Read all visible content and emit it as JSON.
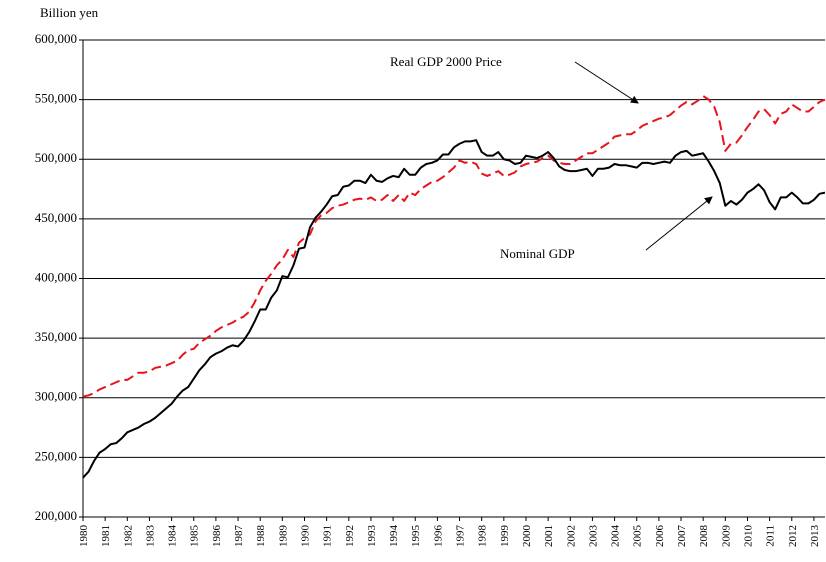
{
  "chart_data": {
    "type": "line",
    "y_axis_label": "Billion yen",
    "annotations": [
      "Real GDP 2000 Price",
      "Nominal GDP"
    ],
    "x": [
      1980,
      1980.25,
      1980.5,
      1980.75,
      1981,
      1981.25,
      1981.5,
      1981.75,
      1982,
      1982.25,
      1982.5,
      1982.75,
      1983,
      1983.25,
      1983.5,
      1983.75,
      1984,
      1984.25,
      1984.5,
      1984.75,
      1985,
      1985.25,
      1985.5,
      1985.75,
      1986,
      1986.25,
      1986.5,
      1986.75,
      1987,
      1987.25,
      1987.5,
      1987.75,
      1988,
      1988.25,
      1988.5,
      1988.75,
      1989,
      1989.25,
      1989.5,
      1989.75,
      1990,
      1990.25,
      1990.5,
      1990.75,
      1991,
      1991.25,
      1991.5,
      1991.75,
      1992,
      1992.25,
      1992.5,
      1992.75,
      1993,
      1993.25,
      1993.5,
      1993.75,
      1994,
      1994.25,
      1994.5,
      1994.75,
      1995,
      1995.25,
      1995.5,
      1995.75,
      1996,
      1996.25,
      1996.5,
      1996.75,
      1997,
      1997.25,
      1997.5,
      1997.75,
      1998,
      1998.25,
      1998.5,
      1998.75,
      1999,
      1999.25,
      1999.5,
      1999.75,
      2000,
      2000.25,
      2000.5,
      2000.75,
      2001,
      2001.25,
      2001.5,
      2001.75,
      2002,
      2002.25,
      2002.5,
      2002.75,
      2003,
      2003.25,
      2003.5,
      2003.75,
      2004,
      2004.25,
      2004.5,
      2004.75,
      2005,
      2005.25,
      2005.5,
      2005.75,
      2006,
      2006.25,
      2006.5,
      2006.75,
      2007,
      2007.25,
      2007.5,
      2007.75,
      2008,
      2008.25,
      2008.5,
      2008.75,
      2009,
      2009.25,
      2009.5,
      2009.75,
      2010,
      2010.25,
      2010.5,
      2010.75,
      2011,
      2011.25,
      2011.5,
      2011.75,
      2012,
      2012.25,
      2012.5,
      2012.75,
      2013,
      2013.25,
      2013.5
    ],
    "series": [
      {
        "name": "Real GDP 2000 Price",
        "color": "#e8141c",
        "dashed": true,
        "values": [
          301000,
          302000,
          304000,
          307000,
          309000,
          311000,
          313000,
          315000,
          315000,
          318000,
          321000,
          321000,
          322000,
          325000,
          326000,
          327000,
          329000,
          331000,
          336000,
          340000,
          341000,
          346000,
          349000,
          352000,
          356000,
          359000,
          361000,
          363000,
          366000,
          368000,
          372000,
          380000,
          390000,
          398000,
          404000,
          411000,
          416000,
          424000,
          418000,
          430000,
          434000,
          437000,
          448000,
          453000,
          455000,
          459000,
          461000,
          462000,
          464000,
          466000,
          467000,
          466000,
          468000,
          465000,
          466000,
          470000,
          465000,
          470000,
          465000,
          472000,
          470000,
          475000,
          478000,
          481000,
          482000,
          485000,
          489000,
          493000,
          499000,
          497000,
          498000,
          496000,
          488000,
          486000,
          488000,
          490000,
          486000,
          487000,
          489000,
          494000,
          496000,
          497000,
          498000,
          501000,
          503000,
          499000,
          497000,
          496000,
          496000,
          499000,
          502000,
          505000,
          505000,
          508000,
          511000,
          514000,
          519000,
          520000,
          521000,
          521000,
          524000,
          528000,
          530000,
          532000,
          534000,
          535000,
          537000,
          541000,
          545000,
          548000,
          546000,
          549000,
          553000,
          550000,
          544000,
          531000,
          507000,
          513000,
          514000,
          520000,
          527000,
          533000,
          540000,
          542000,
          537000,
          530000,
          538000,
          540000,
          546000,
          543000,
          540000,
          540000,
          544000,
          548000,
          550000
        ]
      },
      {
        "name": "Nominal GDP",
        "color": "#000000",
        "dashed": false,
        "values": [
          233000,
          238000,
          247000,
          254000,
          257000,
          261000,
          262000,
          266000,
          271000,
          273000,
          275000,
          278000,
          280000,
          283000,
          287000,
          291000,
          295000,
          301000,
          306000,
          309000,
          316000,
          323000,
          328000,
          334000,
          337000,
          339000,
          342000,
          344000,
          343000,
          348000,
          355000,
          364000,
          374000,
          374000,
          384000,
          390000,
          402000,
          401000,
          411000,
          425000,
          426000,
          443000,
          451000,
          456000,
          462000,
          469000,
          470000,
          477000,
          478000,
          482000,
          482000,
          480000,
          487000,
          482000,
          481000,
          484000,
          486000,
          485000,
          492000,
          487000,
          487000,
          493000,
          496000,
          497000,
          499000,
          504000,
          504000,
          510000,
          513000,
          515000,
          515000,
          516000,
          506000,
          503000,
          503000,
          506000,
          500000,
          499000,
          496000,
          497000,
          503000,
          502000,
          501000,
          503000,
          506000,
          501000,
          494000,
          491000,
          490000,
          490000,
          491000,
          492000,
          486000,
          492000,
          492000,
          493000,
          496000,
          495000,
          495000,
          494000,
          493000,
          497000,
          497000,
          496000,
          497000,
          498000,
          497000,
          503000,
          506000,
          507000,
          503000,
          504000,
          505000,
          498000,
          490000,
          480000,
          461000,
          465000,
          462000,
          466000,
          472000,
          475000,
          479000,
          474000,
          464000,
          458000,
          468000,
          468000,
          472000,
          468000,
          463000,
          463000,
          466000,
          471000,
          472000
        ]
      }
    ],
    "xlim": [
      1980,
      2013.5
    ],
    "xticks": [
      1980,
      1981,
      1982,
      1983,
      1984,
      1985,
      1986,
      1987,
      1988,
      1989,
      1990,
      1991,
      1992,
      1993,
      1994,
      1995,
      1996,
      1997,
      1998,
      1999,
      2000,
      2001,
      2002,
      2003,
      2004,
      2005,
      2006,
      2007,
      2008,
      2009,
      2010,
      2011,
      2012,
      2013
    ],
    "ylim": [
      200000,
      600000
    ],
    "yticks": [
      {
        "value": 200000,
        "label": "200,000"
      },
      {
        "value": 250000,
        "label": "250,000"
      },
      {
        "value": 300000,
        "label": "300,000"
      },
      {
        "value": 350000,
        "label": "350,000"
      },
      {
        "value": 400000,
        "label": "400,000"
      },
      {
        "value": 450000,
        "label": "450,000"
      },
      {
        "value": 500000,
        "label": "500,000"
      },
      {
        "value": 550000,
        "label": "550,000"
      },
      {
        "value": 600000,
        "label": "600,000"
      }
    ],
    "grid": true
  }
}
